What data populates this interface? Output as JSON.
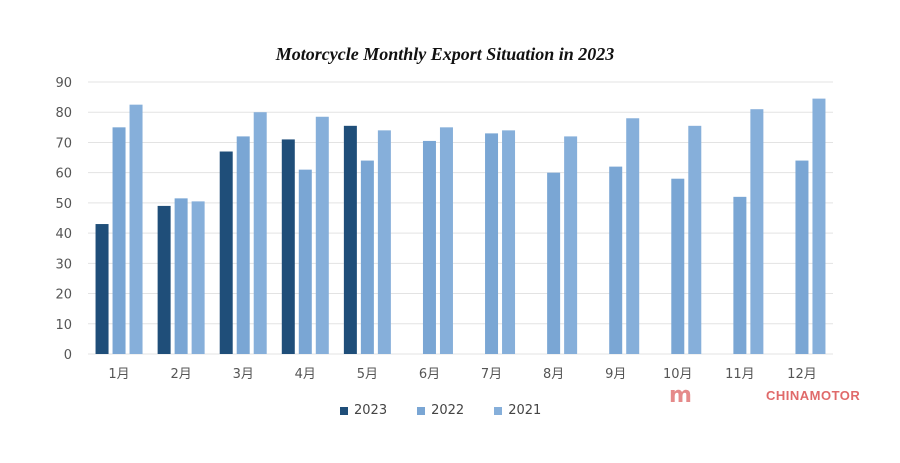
{
  "chart_data": {
    "type": "bar",
    "title": "Motorcycle Monthly Export Situation in 2023",
    "categories": [
      "1月",
      "2月",
      "3月",
      "4月",
      "5月",
      "6月",
      "7月",
      "8月",
      "9月",
      "10月",
      "11月",
      "12月"
    ],
    "series": [
      {
        "name": "2023",
        "color": "#1f4e79",
        "values": [
          43,
          49,
          67,
          71,
          75.5,
          null,
          null,
          null,
          null,
          null,
          null,
          null
        ]
      },
      {
        "name": "2022",
        "color": "#7aa6d4",
        "values": [
          75,
          51.5,
          72,
          61,
          64,
          70.5,
          73,
          60,
          62,
          58,
          52,
          64
        ]
      },
      {
        "name": "2021",
        "color": "#86afda",
        "values": [
          82.5,
          50.5,
          80,
          78.5,
          74,
          75,
          74,
          72,
          78,
          75.5,
          81,
          84.5
        ]
      }
    ],
    "ylim": [
      0,
      90
    ],
    "yticks": [
      0,
      10,
      20,
      30,
      40,
      50,
      60,
      70,
      80,
      90
    ],
    "grid": true,
    "legend": "bottom",
    "xlabel": "",
    "ylabel": ""
  },
  "watermark": {
    "text": "CHINAMOTOR",
    "logo": "m"
  }
}
